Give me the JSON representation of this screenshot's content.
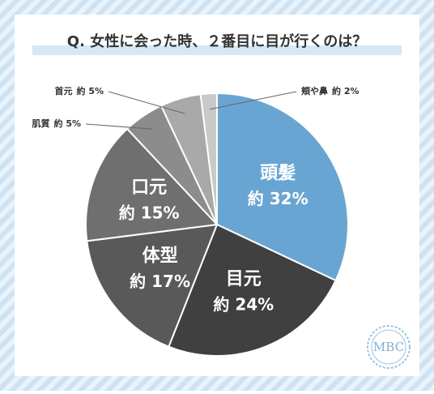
{
  "chart_data": {
    "type": "pie",
    "title": "Q. 女性に会った時、２番目に目が行くのは？",
    "categories": [
      "頭髪",
      "目元",
      "体型",
      "口元",
      "肌質",
      "首元",
      "頬や鼻"
    ],
    "values": [
      32,
      24,
      17,
      15,
      5,
      5,
      2
    ],
    "value_labels": [
      "約 32%",
      "約 24%",
      "約 17%",
      "約 15%",
      "約 5%",
      "約 5%",
      "約 2%"
    ],
    "colors": [
      "#69a5d3",
      "#404040",
      "#595959",
      "#6f6f6f",
      "#8c8c8c",
      "#a9a9a9",
      "#c9c9c9"
    ],
    "logo": "MBC"
  }
}
